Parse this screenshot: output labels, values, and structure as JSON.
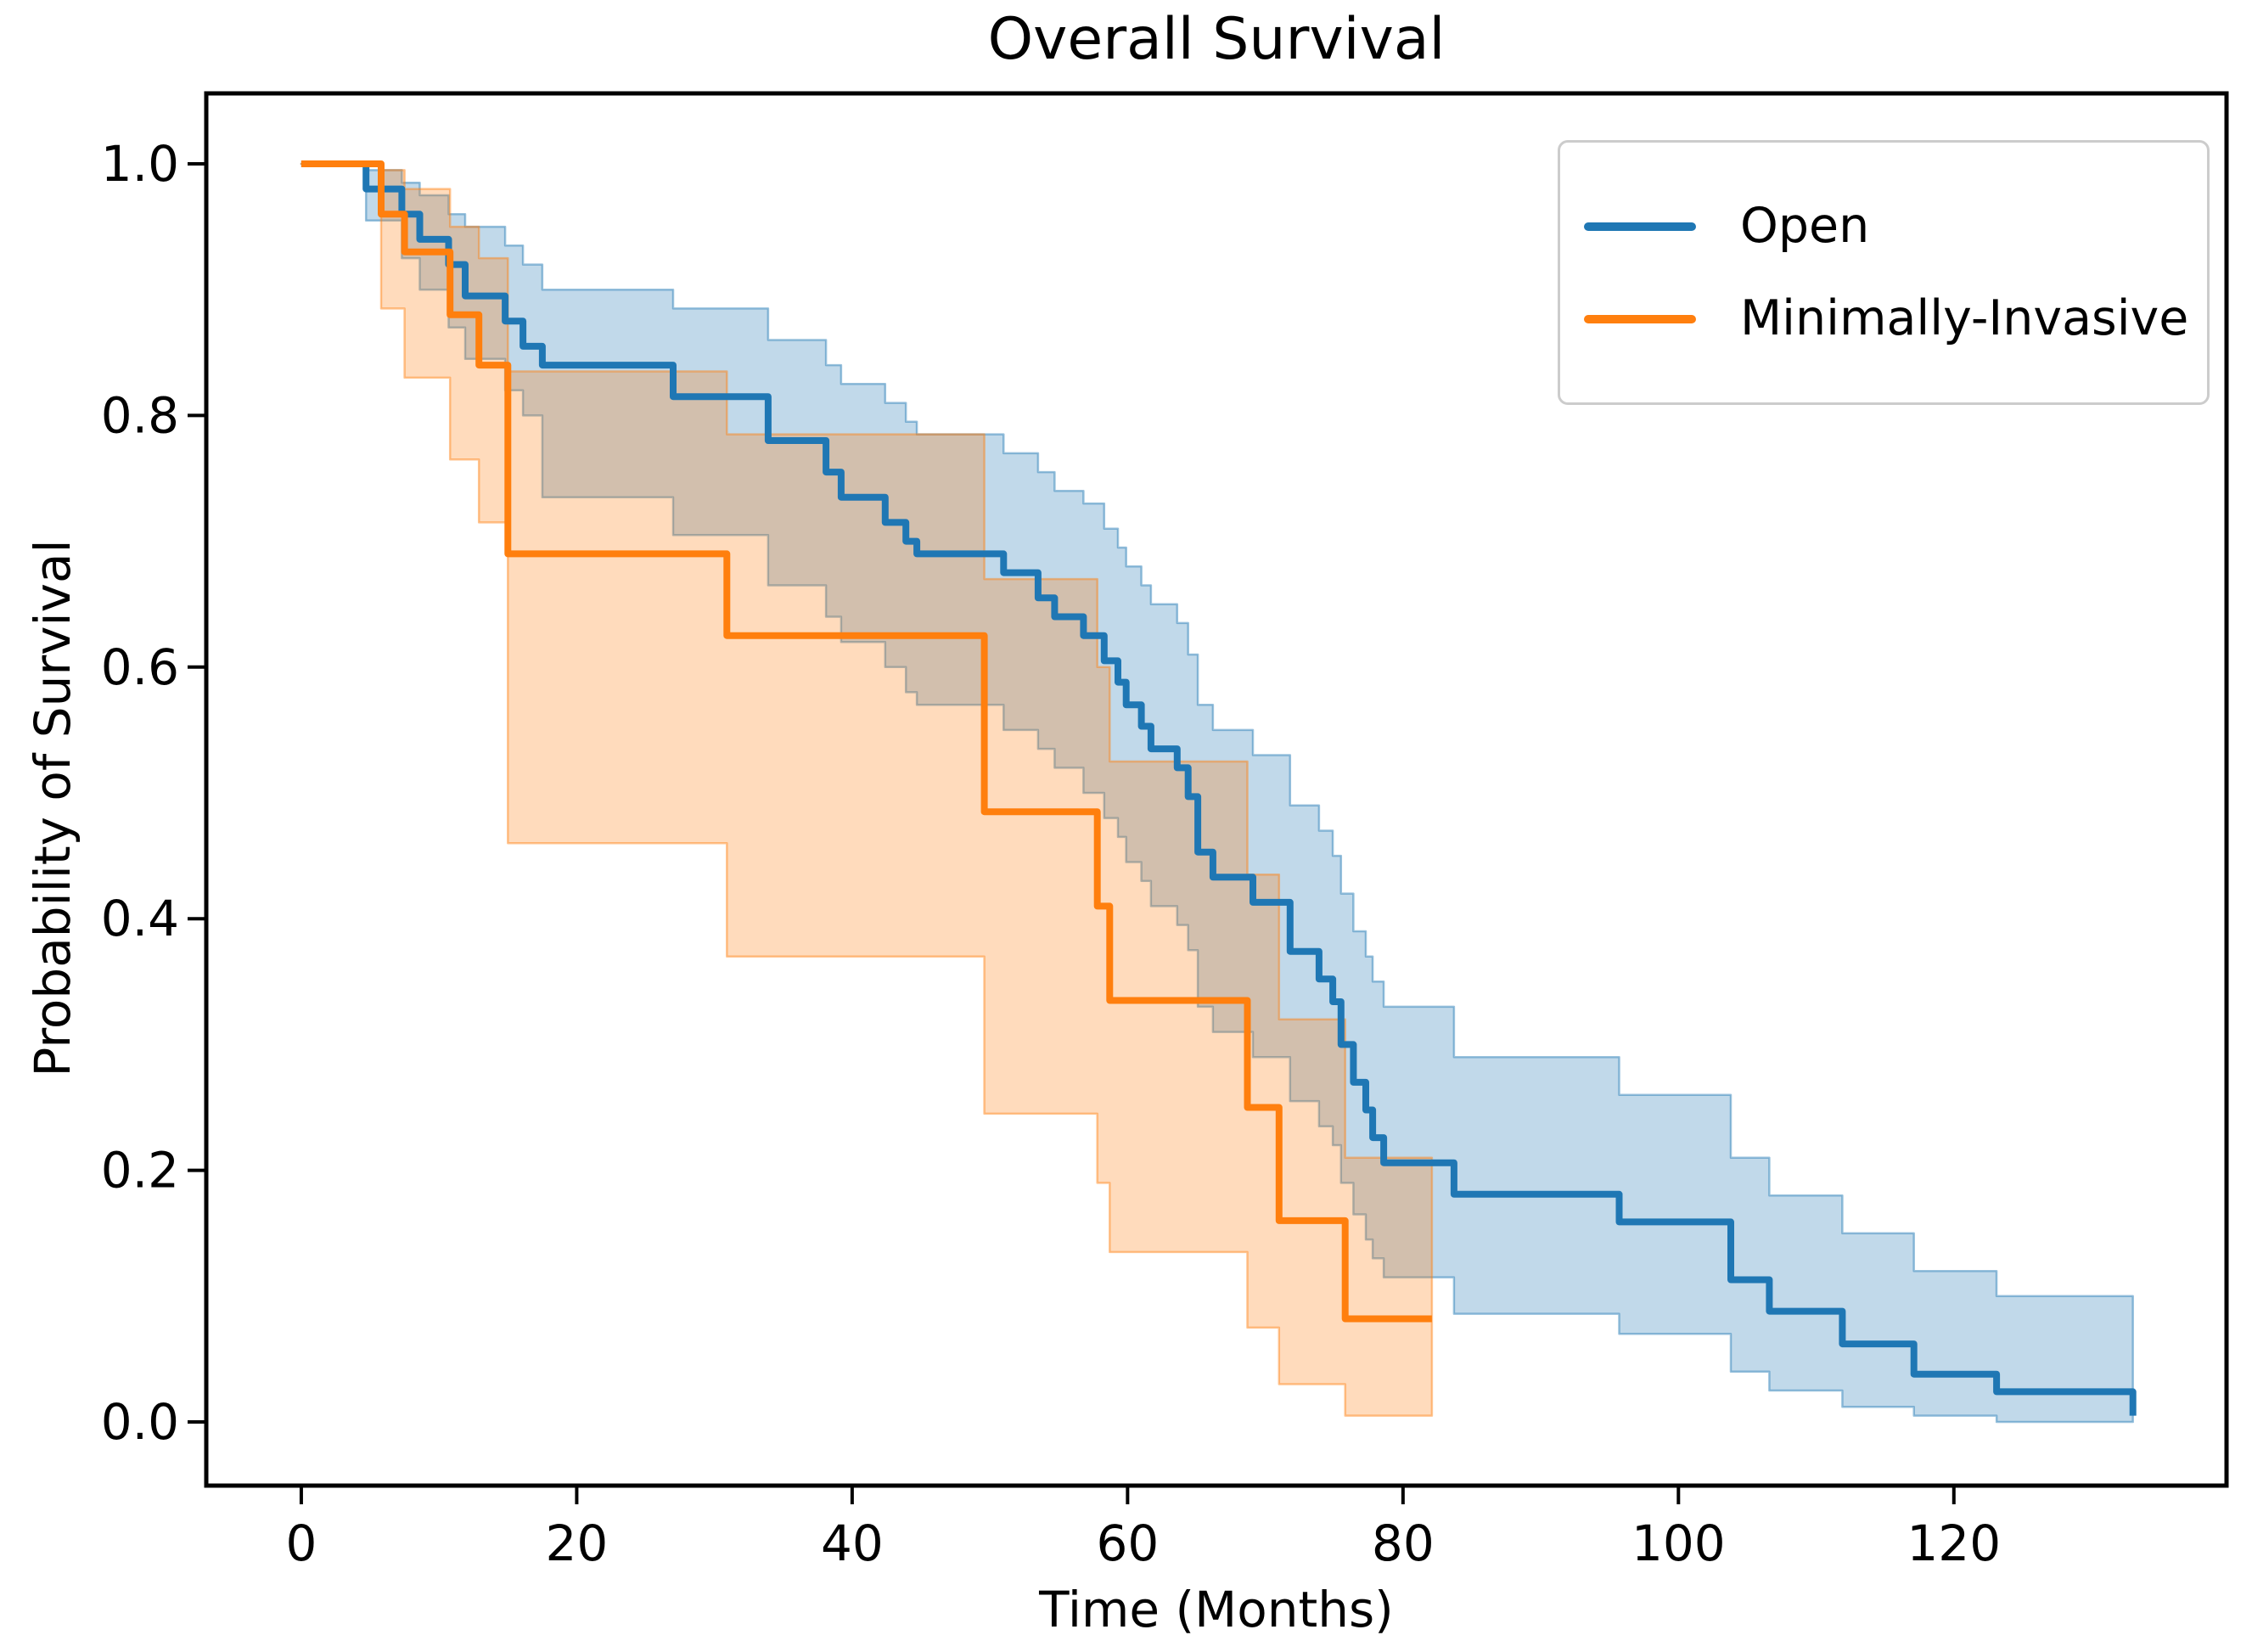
{
  "title": "Overall Survival",
  "legend": {
    "items": [
      {
        "label": "Open",
        "color": "#1f77b4"
      },
      {
        "label": "Minimally-Invasive",
        "color": "#ff7f0e"
      }
    ]
  },
  "colors": {
    "open_line": "#1f77b4",
    "mi_line": "#ff7f0e",
    "axis": "#000000",
    "legend_border": "#cccccc"
  },
  "chart_data": {
    "type": "line",
    "subtype": "kaplan-meier-step-with-confidence-bands",
    "title": "Overall Survival",
    "xlabel": "Time (Months)",
    "ylabel": "Probability of Survival",
    "xlim": [
      -6.9,
      139.8
    ],
    "ylim": [
      -0.0506,
      1.056
    ],
    "x_ticks": [
      0,
      20,
      40,
      60,
      80,
      100,
      120
    ],
    "y_ticks": [
      0.0,
      0.2,
      0.4,
      0.6,
      0.8,
      1.0
    ],
    "y_tick_labels": [
      "0.0",
      "0.2",
      "0.4",
      "0.6",
      "0.8",
      "1.0"
    ],
    "grid": false,
    "legend_position": "upper right",
    "series": [
      {
        "name": "Open",
        "color": "#1f77b4",
        "band_opacity": 0.28,
        "points": [
          [
            0,
            1.0
          ],
          [
            4.7,
            0.98
          ],
          [
            7.3,
            0.96
          ],
          [
            8.6,
            0.94
          ],
          [
            10.7,
            0.92
          ],
          [
            11.9,
            0.895
          ],
          [
            14.8,
            0.875
          ],
          [
            16.1,
            0.855
          ],
          [
            17.5,
            0.84
          ],
          [
            27.0,
            0.815
          ],
          [
            33.9,
            0.78
          ],
          [
            38.1,
            0.755
          ],
          [
            39.2,
            0.735
          ],
          [
            42.4,
            0.715
          ],
          [
            43.9,
            0.7
          ],
          [
            44.7,
            0.69
          ],
          [
            51.0,
            0.675
          ],
          [
            53.5,
            0.655
          ],
          [
            54.7,
            0.64
          ],
          [
            56.8,
            0.625
          ],
          [
            58.3,
            0.605
          ],
          [
            59.3,
            0.588
          ],
          [
            59.9,
            0.57
          ],
          [
            61.0,
            0.553
          ],
          [
            61.7,
            0.535
          ],
          [
            63.6,
            0.52
          ],
          [
            64.4,
            0.497
          ],
          [
            65.1,
            0.453
          ],
          [
            66.2,
            0.433
          ],
          [
            69.1,
            0.413
          ],
          [
            71.8,
            0.374
          ],
          [
            73.9,
            0.352
          ],
          [
            74.9,
            0.334
          ],
          [
            75.5,
            0.3
          ],
          [
            76.4,
            0.27
          ],
          [
            77.3,
            0.248
          ],
          [
            77.8,
            0.226
          ],
          [
            78.6,
            0.206
          ],
          [
            83.7,
            0.181
          ],
          [
            95.7,
            0.159
          ],
          [
            103.8,
            0.113
          ],
          [
            106.6,
            0.088
          ],
          [
            111.9,
            0.062
          ],
          [
            117.1,
            0.038
          ],
          [
            123.1,
            0.024
          ],
          [
            133.0,
            0.005
          ]
        ],
        "ci": [
          [
            0,
            1.0,
            1.0
          ],
          [
            4.7,
            0.955,
            0.995
          ],
          [
            7.3,
            0.925,
            0.985
          ],
          [
            8.6,
            0.9,
            0.975
          ],
          [
            10.7,
            0.87,
            0.96
          ],
          [
            11.9,
            0.845,
            0.95
          ],
          [
            14.8,
            0.82,
            0.935
          ],
          [
            16.1,
            0.8,
            0.92
          ],
          [
            17.5,
            0.735,
            0.9
          ],
          [
            27.0,
            0.705,
            0.885
          ],
          [
            33.9,
            0.665,
            0.86
          ],
          [
            38.1,
            0.64,
            0.84
          ],
          [
            39.2,
            0.62,
            0.825
          ],
          [
            42.4,
            0.6,
            0.81
          ],
          [
            43.9,
            0.58,
            0.795
          ],
          [
            44.7,
            0.57,
            0.785
          ],
          [
            51.0,
            0.55,
            0.77
          ],
          [
            53.5,
            0.535,
            0.755
          ],
          [
            54.7,
            0.52,
            0.74
          ],
          [
            56.8,
            0.5,
            0.73
          ],
          [
            58.3,
            0.48,
            0.71
          ],
          [
            59.3,
            0.465,
            0.695
          ],
          [
            59.9,
            0.445,
            0.68
          ],
          [
            61.0,
            0.43,
            0.665
          ],
          [
            61.7,
            0.41,
            0.65
          ],
          [
            63.6,
            0.395,
            0.635
          ],
          [
            64.4,
            0.375,
            0.61
          ],
          [
            65.1,
            0.33,
            0.57
          ],
          [
            66.2,
            0.31,
            0.55
          ],
          [
            69.1,
            0.29,
            0.53
          ],
          [
            71.8,
            0.255,
            0.49
          ],
          [
            73.9,
            0.235,
            0.47
          ],
          [
            74.9,
            0.22,
            0.45
          ],
          [
            75.5,
            0.19,
            0.42
          ],
          [
            76.4,
            0.165,
            0.39
          ],
          [
            77.3,
            0.145,
            0.37
          ],
          [
            77.8,
            0.13,
            0.35
          ],
          [
            78.6,
            0.115,
            0.33
          ],
          [
            83.7,
            0.086,
            0.29
          ],
          [
            95.7,
            0.07,
            0.26
          ],
          [
            103.8,
            0.04,
            0.21
          ],
          [
            106.6,
            0.025,
            0.18
          ],
          [
            111.9,
            0.012,
            0.15
          ],
          [
            117.1,
            0.005,
            0.12
          ],
          [
            123.1,
            0.0,
            0.1
          ],
          [
            133.0,
            0.0,
            0.09
          ]
        ]
      },
      {
        "name": "Minimally-Invasive",
        "color": "#ff7f0e",
        "band_opacity": 0.28,
        "points": [
          [
            0,
            1.0
          ],
          [
            5.8,
            0.96
          ],
          [
            7.5,
            0.93
          ],
          [
            10.8,
            0.88
          ],
          [
            12.9,
            0.84
          ],
          [
            15.0,
            0.69
          ],
          [
            30.9,
            0.625
          ],
          [
            49.6,
            0.485
          ],
          [
            57.8,
            0.41
          ],
          [
            58.7,
            0.335
          ],
          [
            68.7,
            0.25
          ],
          [
            71.0,
            0.16
          ],
          [
            75.8,
            0.082
          ],
          [
            82.1,
            0.082
          ]
        ],
        "ci": [
          [
            0,
            1.0,
            1.0
          ],
          [
            5.8,
            0.885,
            0.995
          ],
          [
            7.5,
            0.83,
            0.98
          ],
          [
            10.8,
            0.765,
            0.95
          ],
          [
            12.9,
            0.715,
            0.925
          ],
          [
            15.0,
            0.46,
            0.835
          ],
          [
            30.9,
            0.37,
            0.785
          ],
          [
            49.6,
            0.245,
            0.67
          ],
          [
            57.8,
            0.19,
            0.6
          ],
          [
            58.7,
            0.135,
            0.525
          ],
          [
            68.7,
            0.075,
            0.435
          ],
          [
            71.0,
            0.03,
            0.32
          ],
          [
            75.8,
            0.005,
            0.21
          ],
          [
            82.1,
            0.005,
            0.21
          ]
        ]
      }
    ]
  }
}
